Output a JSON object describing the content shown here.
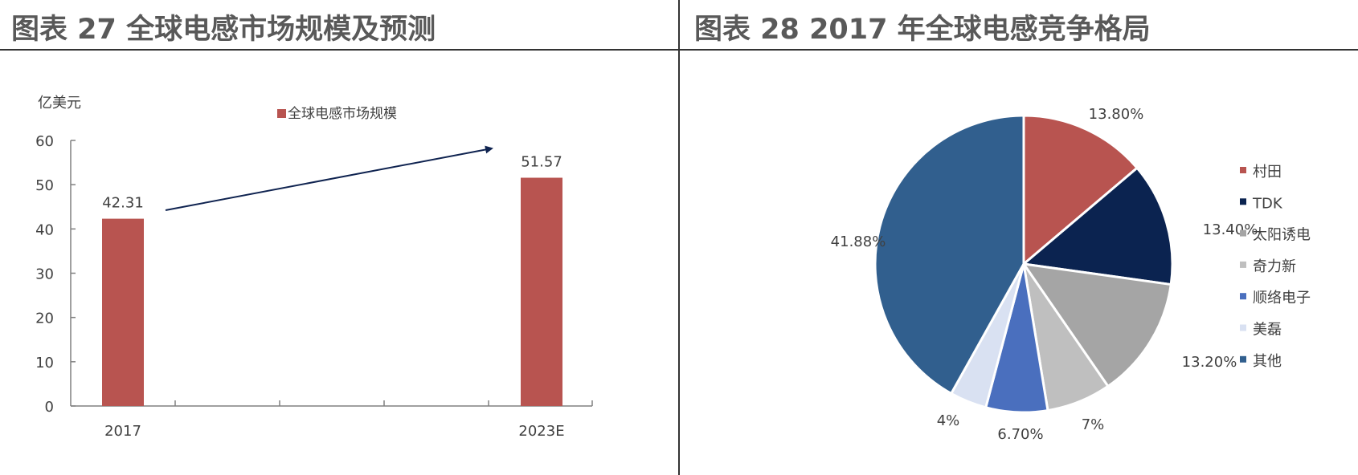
{
  "left": {
    "title": "图表 27 全球电感市场规模及预测"
  },
  "right": {
    "title": "图表 28 2017 年全球电感竞争格局"
  },
  "chart_data": [
    {
      "type": "bar",
      "title": "图表 27 全球电感市场规模及预测",
      "ylabel": "亿美元",
      "xlabel": "",
      "categories": [
        "2017",
        "2023E"
      ],
      "series": [
        {
          "name": "全球电感市场规模",
          "values": [
            42.31,
            51.57
          ],
          "color": "#B85450"
        }
      ],
      "data_labels": [
        "42.31",
        "51.57"
      ],
      "yticks": [
        "0",
        "10",
        "20",
        "30",
        "40",
        "50",
        "60"
      ],
      "ylim": [
        0,
        60
      ],
      "grid": false,
      "legend_position": "top",
      "annotation": "arrow from 2017 toward 2023E indicating growth",
      "arrow_color": "#0F2350"
    },
    {
      "type": "pie",
      "title": "图表 28 2017 年全球电感竞争格局",
      "categories": [
        "村田",
        "TDK",
        "太阳诱电",
        "奇力新",
        "顺络电子",
        "美磊",
        "其他"
      ],
      "values": [
        13.8,
        13.4,
        13.2,
        7,
        6.7,
        4,
        41.88
      ],
      "labels": [
        "13.80%",
        "13.40%",
        "13.20%",
        "7%",
        "6.70%",
        "4%",
        "41.88%"
      ],
      "colors": [
        "#B85450",
        "#0B2350",
        "#A5A5A5",
        "#BFBFBF",
        "#4A6FBE",
        "#D9E1F2",
        "#315F8E"
      ],
      "legend_position": "right"
    }
  ]
}
